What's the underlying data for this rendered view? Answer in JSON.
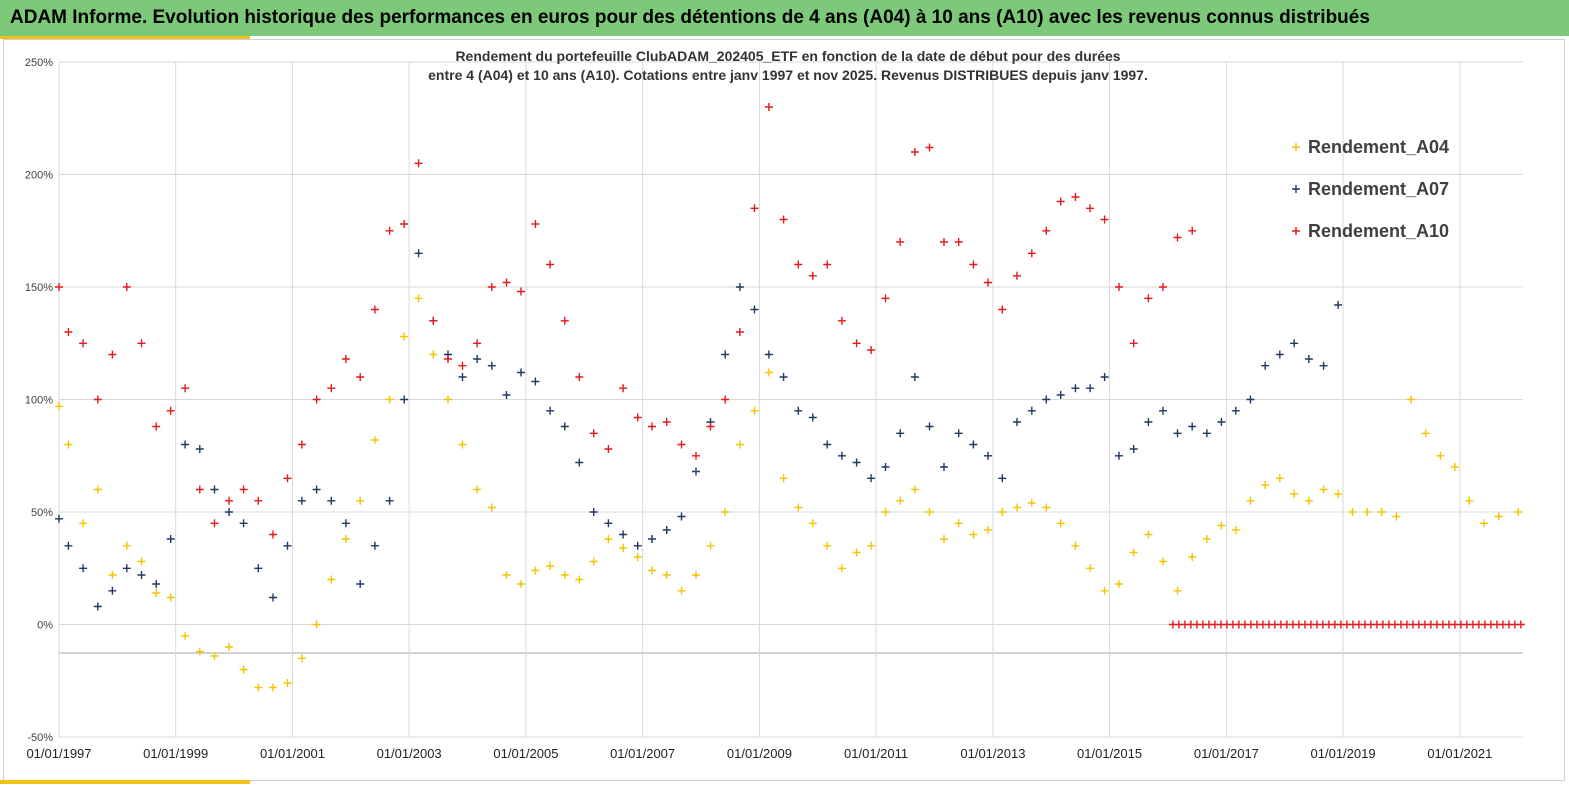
{
  "header": {
    "title": "ADAM Informe. Evolution historique des performances en euros pour des détentions de 4 ans (A04) à 10 ans (A10) avec les revenus connus distribués",
    "background_color": "#7dc97a",
    "accent_color": "#f2c21b"
  },
  "chart_data": {
    "type": "scatter",
    "title_line1": "Rendement du portefeuille ClubADAM_202405_ETF  en fonction de la date de début pour des durées",
    "title_line2": "entre 4 (A04) et 10 ans (A10). Cotations  entre janv 1997 et nov 2025. Revenus DISTRIBUES depuis janv 1997.",
    "xlabel": "",
    "ylabel": "",
    "x_range": [
      "1997-01-01",
      "2022-01-31"
    ],
    "ylim": [
      -50,
      250
    ],
    "y_ticks": [
      -50,
      0,
      50,
      100,
      150,
      200,
      250
    ],
    "y_tick_labels": [
      "-50%",
      "0%",
      "50%",
      "100%",
      "150%",
      "200%",
      "250%"
    ],
    "x_ticks": [
      "1997-01-01",
      "1999-01-01",
      "2001-01-01",
      "2003-01-01",
      "2005-01-01",
      "2007-01-01",
      "2009-01-01",
      "2011-01-01",
      "2013-01-01",
      "2015-01-01",
      "2017-01-01",
      "2019-01-01",
      "2021-01-01"
    ],
    "x_tick_labels": [
      "01/01/1997",
      "01/01/1999",
      "01/01/2001",
      "01/01/2003",
      "01/01/2005",
      "01/01/2007",
      "01/01/2009",
      "01/01/2011",
      "01/01/2013",
      "01/01/2015",
      "01/01/2017",
      "01/01/2019",
      "01/01/2021"
    ],
    "grid": true,
    "legend_position": "top-right",
    "marker": "+",
    "series": [
      {
        "name": "Rendement_A04",
        "color": "#f5c400",
        "points": [
          [
            "1997-01-01",
            97
          ],
          [
            "1997-03-01",
            80
          ],
          [
            "1997-06-01",
            45
          ],
          [
            "1997-09-01",
            60
          ],
          [
            "1997-12-01",
            22
          ],
          [
            "1998-03-01",
            35
          ],
          [
            "1998-06-01",
            28
          ],
          [
            "1998-09-01",
            14
          ],
          [
            "1998-12-01",
            12
          ],
          [
            "1999-03-01",
            -5
          ],
          [
            "1999-06-01",
            -12
          ],
          [
            "1999-09-01",
            -14
          ],
          [
            "1999-12-01",
            -10
          ],
          [
            "2000-03-01",
            -20
          ],
          [
            "2000-06-01",
            -28
          ],
          [
            "2000-09-01",
            -28
          ],
          [
            "2000-12-01",
            -26
          ],
          [
            "2001-03-01",
            -15
          ],
          [
            "2001-06-01",
            0
          ],
          [
            "2001-09-01",
            20
          ],
          [
            "2001-12-01",
            38
          ],
          [
            "2002-03-01",
            55
          ],
          [
            "2002-06-01",
            82
          ],
          [
            "2002-09-01",
            100
          ],
          [
            "2002-12-01",
            128
          ],
          [
            "2003-03-01",
            145
          ],
          [
            "2003-06-01",
            120
          ],
          [
            "2003-09-01",
            100
          ],
          [
            "2003-12-01",
            80
          ],
          [
            "2004-03-01",
            60
          ],
          [
            "2004-06-01",
            52
          ],
          [
            "2004-09-01",
            22
          ],
          [
            "2004-12-01",
            18
          ],
          [
            "2005-03-01",
            24
          ],
          [
            "2005-06-01",
            26
          ],
          [
            "2005-09-01",
            22
          ],
          [
            "2005-12-01",
            20
          ],
          [
            "2006-03-01",
            28
          ],
          [
            "2006-06-01",
            38
          ],
          [
            "2006-09-01",
            34
          ],
          [
            "2006-12-01",
            30
          ],
          [
            "2007-03-01",
            24
          ],
          [
            "2007-06-01",
            22
          ],
          [
            "2007-09-01",
            15
          ],
          [
            "2007-12-01",
            22
          ],
          [
            "2008-03-01",
            35
          ],
          [
            "2008-06-01",
            50
          ],
          [
            "2008-09-01",
            80
          ],
          [
            "2008-12-01",
            95
          ],
          [
            "2009-03-01",
            112
          ],
          [
            "2009-06-01",
            65
          ],
          [
            "2009-09-01",
            52
          ],
          [
            "2009-12-01",
            45
          ],
          [
            "2010-03-01",
            35
          ],
          [
            "2010-06-01",
            25
          ],
          [
            "2010-09-01",
            32
          ],
          [
            "2010-12-01",
            35
          ],
          [
            "2011-03-01",
            50
          ],
          [
            "2011-06-01",
            55
          ],
          [
            "2011-09-01",
            60
          ],
          [
            "2011-12-01",
            50
          ],
          [
            "2012-03-01",
            38
          ],
          [
            "2012-06-01",
            45
          ],
          [
            "2012-09-01",
            40
          ],
          [
            "2012-12-01",
            42
          ],
          [
            "2013-03-01",
            50
          ],
          [
            "2013-06-01",
            52
          ],
          [
            "2013-09-01",
            54
          ],
          [
            "2013-12-01",
            52
          ],
          [
            "2014-03-01",
            45
          ],
          [
            "2014-06-01",
            35
          ],
          [
            "2014-09-01",
            25
          ],
          [
            "2014-12-01",
            15
          ],
          [
            "2015-03-01",
            18
          ],
          [
            "2015-06-01",
            32
          ],
          [
            "2015-09-01",
            40
          ],
          [
            "2015-12-01",
            28
          ],
          [
            "2016-03-01",
            15
          ],
          [
            "2016-06-01",
            30
          ],
          [
            "2016-09-01",
            38
          ],
          [
            "2016-12-01",
            44
          ],
          [
            "2017-03-01",
            42
          ],
          [
            "2017-06-01",
            55
          ],
          [
            "2017-09-01",
            62
          ],
          [
            "2017-12-01",
            65
          ],
          [
            "2018-03-01",
            58
          ],
          [
            "2018-06-01",
            55
          ],
          [
            "2018-09-01",
            60
          ],
          [
            "2018-12-01",
            58
          ],
          [
            "2019-03-01",
            50
          ],
          [
            "2019-06-01",
            50
          ],
          [
            "2019-09-01",
            50
          ],
          [
            "2019-12-01",
            48
          ],
          [
            "2020-03-01",
            100
          ],
          [
            "2020-06-01",
            85
          ],
          [
            "2020-09-01",
            75
          ],
          [
            "2020-12-01",
            70
          ],
          [
            "2021-03-01",
            55
          ],
          [
            "2021-06-01",
            45
          ],
          [
            "2021-09-01",
            48
          ],
          [
            "2022-01-01",
            50
          ]
        ]
      },
      {
        "name": "Rendement_A07",
        "color": "#203864",
        "points": [
          [
            "1997-01-01",
            47
          ],
          [
            "1997-03-01",
            35
          ],
          [
            "1997-06-01",
            25
          ],
          [
            "1997-09-01",
            8
          ],
          [
            "1997-12-01",
            15
          ],
          [
            "1998-03-01",
            25
          ],
          [
            "1998-06-01",
            22
          ],
          [
            "1998-09-01",
            18
          ],
          [
            "1998-12-01",
            38
          ],
          [
            "1999-03-01",
            80
          ],
          [
            "1999-06-01",
            78
          ],
          [
            "1999-09-01",
            60
          ],
          [
            "1999-12-01",
            50
          ],
          [
            "2000-03-01",
            45
          ],
          [
            "2000-06-01",
            25
          ],
          [
            "2000-09-01",
            12
          ],
          [
            "2000-12-01",
            35
          ],
          [
            "2001-03-01",
            55
          ],
          [
            "2001-06-01",
            60
          ],
          [
            "2001-09-01",
            55
          ],
          [
            "2001-12-01",
            45
          ],
          [
            "2002-03-01",
            18
          ],
          [
            "2002-06-01",
            35
          ],
          [
            "2002-09-01",
            55
          ],
          [
            "2002-12-01",
            100
          ],
          [
            "2003-03-01",
            165
          ],
          [
            "2003-06-01",
            135
          ],
          [
            "2003-09-01",
            120
          ],
          [
            "2003-12-01",
            110
          ],
          [
            "2004-03-01",
            118
          ],
          [
            "2004-06-01",
            115
          ],
          [
            "2004-09-01",
            102
          ],
          [
            "2004-12-01",
            112
          ],
          [
            "2005-03-01",
            108
          ],
          [
            "2005-06-01",
            95
          ],
          [
            "2005-09-01",
            88
          ],
          [
            "2005-12-01",
            72
          ],
          [
            "2006-03-01",
            50
          ],
          [
            "2006-06-01",
            45
          ],
          [
            "2006-09-01",
            40
          ],
          [
            "2006-12-01",
            35
          ],
          [
            "2007-03-01",
            38
          ],
          [
            "2007-06-01",
            42
          ],
          [
            "2007-09-01",
            48
          ],
          [
            "2007-12-01",
            68
          ],
          [
            "2008-03-01",
            90
          ],
          [
            "2008-06-01",
            120
          ],
          [
            "2008-09-01",
            150
          ],
          [
            "2008-12-01",
            140
          ],
          [
            "2009-03-01",
            120
          ],
          [
            "2009-06-01",
            110
          ],
          [
            "2009-09-01",
            95
          ],
          [
            "2009-12-01",
            92
          ],
          [
            "2010-03-01",
            80
          ],
          [
            "2010-06-01",
            75
          ],
          [
            "2010-09-01",
            72
          ],
          [
            "2010-12-01",
            65
          ],
          [
            "2011-03-01",
            70
          ],
          [
            "2011-06-01",
            85
          ],
          [
            "2011-09-01",
            110
          ],
          [
            "2011-12-01",
            88
          ],
          [
            "2012-03-01",
            70
          ],
          [
            "2012-06-01",
            85
          ],
          [
            "2012-09-01",
            80
          ],
          [
            "2012-12-01",
            75
          ],
          [
            "2013-03-01",
            65
          ],
          [
            "2013-06-01",
            90
          ],
          [
            "2013-09-01",
            95
          ],
          [
            "2013-12-01",
            100
          ],
          [
            "2014-03-01",
            102
          ],
          [
            "2014-06-01",
            105
          ],
          [
            "2014-09-01",
            105
          ],
          [
            "2014-12-01",
            110
          ],
          [
            "2015-03-01",
            75
          ],
          [
            "2015-06-01",
            78
          ],
          [
            "2015-09-01",
            90
          ],
          [
            "2015-12-01",
            95
          ],
          [
            "2016-03-01",
            85
          ],
          [
            "2016-06-01",
            88
          ],
          [
            "2016-09-01",
            85
          ],
          [
            "2016-12-01",
            90
          ],
          [
            "2017-03-01",
            95
          ],
          [
            "2017-06-01",
            100
          ],
          [
            "2017-09-01",
            115
          ],
          [
            "2017-12-01",
            120
          ],
          [
            "2018-03-01",
            125
          ],
          [
            "2018-06-01",
            118
          ],
          [
            "2018-09-01",
            115
          ],
          [
            "2018-12-01",
            142
          ]
        ]
      },
      {
        "name": "Rendement_A10",
        "color": "#e31a1c",
        "points": [
          [
            "1997-01-01",
            150
          ],
          [
            "1997-03-01",
            130
          ],
          [
            "1997-06-01",
            125
          ],
          [
            "1997-09-01",
            100
          ],
          [
            "1997-12-01",
            120
          ],
          [
            "1998-03-01",
            150
          ],
          [
            "1998-06-01",
            125
          ],
          [
            "1998-09-01",
            88
          ],
          [
            "1998-12-01",
            95
          ],
          [
            "1999-03-01",
            105
          ],
          [
            "1999-06-01",
            60
          ],
          [
            "1999-09-01",
            45
          ],
          [
            "1999-12-01",
            55
          ],
          [
            "2000-03-01",
            60
          ],
          [
            "2000-06-01",
            55
          ],
          [
            "2000-09-01",
            40
          ],
          [
            "2000-12-01",
            65
          ],
          [
            "2001-03-01",
            80
          ],
          [
            "2001-06-01",
            100
          ],
          [
            "2001-09-01",
            105
          ],
          [
            "2001-12-01",
            118
          ],
          [
            "2002-03-01",
            110
          ],
          [
            "2002-06-01",
            140
          ],
          [
            "2002-09-01",
            175
          ],
          [
            "2002-12-01",
            178
          ],
          [
            "2003-03-01",
            205
          ],
          [
            "2003-06-01",
            135
          ],
          [
            "2003-09-01",
            118
          ],
          [
            "2003-12-01",
            115
          ],
          [
            "2004-03-01",
            125
          ],
          [
            "2004-06-01",
            150
          ],
          [
            "2004-09-01",
            152
          ],
          [
            "2004-12-01",
            148
          ],
          [
            "2005-03-01",
            178
          ],
          [
            "2005-06-01",
            160
          ],
          [
            "2005-09-01",
            135
          ],
          [
            "2005-12-01",
            110
          ],
          [
            "2006-03-01",
            85
          ],
          [
            "2006-06-01",
            78
          ],
          [
            "2006-09-01",
            105
          ],
          [
            "2006-12-01",
            92
          ],
          [
            "2007-03-01",
            88
          ],
          [
            "2007-06-01",
            90
          ],
          [
            "2007-09-01",
            80
          ],
          [
            "2007-12-01",
            75
          ],
          [
            "2008-03-01",
            88
          ],
          [
            "2008-06-01",
            100
          ],
          [
            "2008-09-01",
            130
          ],
          [
            "2008-12-01",
            185
          ],
          [
            "2009-03-01",
            230
          ],
          [
            "2009-06-01",
            180
          ],
          [
            "2009-09-01",
            160
          ],
          [
            "2009-12-01",
            155
          ],
          [
            "2010-03-01",
            160
          ],
          [
            "2010-06-01",
            135
          ],
          [
            "2010-09-01",
            125
          ],
          [
            "2010-12-01",
            122
          ],
          [
            "2011-03-01",
            145
          ],
          [
            "2011-06-01",
            170
          ],
          [
            "2011-09-01",
            210
          ],
          [
            "2011-12-01",
            212
          ],
          [
            "2012-03-01",
            170
          ],
          [
            "2012-06-01",
            170
          ],
          [
            "2012-09-01",
            160
          ],
          [
            "2012-12-01",
            152
          ],
          [
            "2013-03-01",
            140
          ],
          [
            "2013-06-01",
            155
          ],
          [
            "2013-09-01",
            165
          ],
          [
            "2013-12-01",
            175
          ],
          [
            "2014-03-01",
            188
          ],
          [
            "2014-06-01",
            190
          ],
          [
            "2014-09-01",
            185
          ],
          [
            "2014-12-01",
            180
          ],
          [
            "2015-03-01",
            150
          ],
          [
            "2015-06-01",
            125
          ],
          [
            "2015-09-01",
            145
          ],
          [
            "2015-12-01",
            150
          ],
          [
            "2016-03-01",
            172
          ],
          [
            "2016-06-01",
            175
          ]
        ]
      }
    ],
    "zero_line": {
      "color": "#e31a1c",
      "from": "2016-02-01",
      "to": "2022-01-20",
      "value": 0
    }
  }
}
